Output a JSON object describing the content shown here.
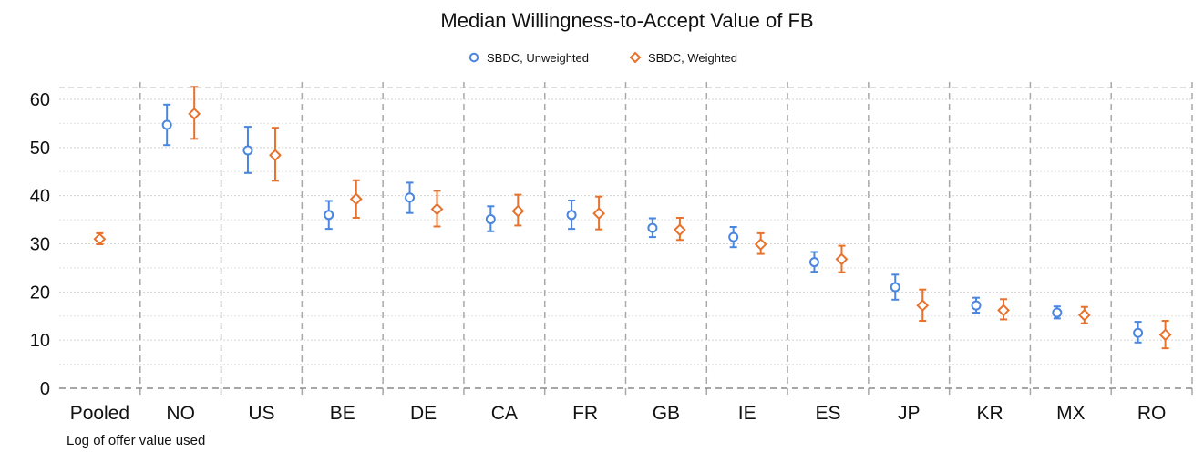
{
  "chart_data": {
    "type": "scatter",
    "title": "Median Willingness-to-Accept Value of FB",
    "note": "Log of offer value used",
    "xlabel": "",
    "ylabel": "",
    "categories": [
      "Pooled",
      "NO",
      "US",
      "BE",
      "DE",
      "CA",
      "FR",
      "GB",
      "IE",
      "ES",
      "JP",
      "KR",
      "MX",
      "RO"
    ],
    "ylim": [
      0,
      62
    ],
    "yticks": [
      "0",
      "10",
      "20",
      "30",
      "40",
      "50",
      "60"
    ],
    "grid": true,
    "legend_position": "top-center",
    "series": [
      {
        "name": "SBDC, Unweighted",
        "marker": "circle",
        "color": "#4a86e0",
        "values": [
          null,
          54.7,
          49.4,
          36.0,
          39.6,
          35.1,
          36.0,
          33.3,
          31.4,
          26.2,
          21.0,
          17.2,
          15.7,
          11.5
        ],
        "lower": [
          null,
          50.5,
          44.7,
          33.1,
          36.4,
          32.6,
          33.1,
          31.4,
          29.3,
          24.2,
          18.4,
          15.7,
          14.5,
          9.5
        ],
        "upper": [
          null,
          58.9,
          54.3,
          38.9,
          42.7,
          37.8,
          39.0,
          35.3,
          33.5,
          28.3,
          23.6,
          18.8,
          17.0,
          13.8
        ]
      },
      {
        "name": "SBDC, Weighted",
        "marker": "diamond",
        "color": "#e8712b",
        "values": [
          31.0,
          57.0,
          48.4,
          39.3,
          37.2,
          36.8,
          36.3,
          32.9,
          29.9,
          26.8,
          17.2,
          16.2,
          15.2,
          11.1
        ],
        "lower": [
          29.9,
          51.8,
          43.1,
          35.4,
          33.6,
          33.8,
          33.0,
          30.8,
          27.9,
          24.1,
          14.0,
          14.3,
          13.5,
          8.3
        ],
        "upper": [
          32.2,
          62.6,
          54.1,
          43.2,
          41.0,
          40.2,
          39.8,
          35.4,
          32.2,
          29.6,
          20.5,
          18.5,
          16.9,
          14.0
        ]
      }
    ]
  }
}
